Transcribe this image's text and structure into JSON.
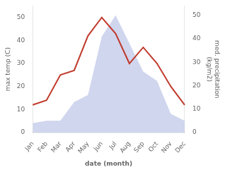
{
  "chart_data": {
    "type": "line",
    "categories": [
      "Jan",
      "Feb",
      "Mar",
      "Apr",
      "May",
      "Jun",
      "Jul",
      "Aug",
      "Sep",
      "Oct",
      "Nov",
      "Dec"
    ],
    "xlabel": "date (month)",
    "ylabel": "max temp (C)",
    "y2label": "med. precipitation\n(kg/m2)",
    "series": [
      {
        "type": "area",
        "axis": "y2",
        "color": "#aab4e0",
        "values": [
          4,
          5,
          5,
          13,
          16,
          41,
          50,
          38,
          26,
          22,
          8,
          5
        ]
      },
      {
        "type": "line",
        "color": "#c0392b",
        "values": [
          12,
          14,
          25,
          27,
          42,
          50,
          43,
          30,
          37,
          30,
          20,
          12
        ]
      }
    ],
    "ylim": [
      0,
      55
    ],
    "yticks": [
      0,
      10,
      20,
      30,
      40,
      50
    ],
    "y2lim": [
      0,
      54
    ],
    "y2ticks": [
      0,
      10,
      20,
      30,
      40,
      50
    ],
    "grid": false
  }
}
